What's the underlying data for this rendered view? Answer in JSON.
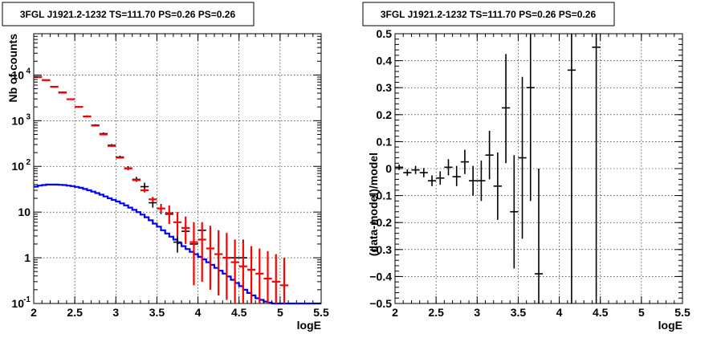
{
  "chart_data": [
    {
      "type": "scatter",
      "title": "3FGL J1921.2-1232 TS=111.70 PS=0.26 PS=0.26",
      "xlabel": "logE",
      "ylabel": "Nb of counts",
      "xlim": [
        2,
        5.5
      ],
      "ylim": [
        0.1,
        80000
      ],
      "yscale": "log",
      "grid": true,
      "x_ticks": [
        "2",
        "2.5",
        "3",
        "3.5",
        "4",
        "4.5",
        "5",
        "5.5"
      ],
      "y_ticks": [
        {
          "value": 0.1,
          "label": "10",
          "sup": "-1"
        },
        {
          "value": 1,
          "label": "1",
          "sup": ""
        },
        {
          "value": 10,
          "label": "10",
          "sup": ""
        },
        {
          "value": 100,
          "label": "10",
          "sup": "2"
        },
        {
          "value": 1000,
          "label": "10",
          "sup": "3"
        },
        {
          "value": 10000,
          "label": "10",
          "sup": "4"
        }
      ],
      "series": [
        {
          "color": "#0000ff",
          "style": "step",
          "bin_edges": [
            2.0,
            2.05,
            2.1,
            2.15,
            2.2,
            2.25,
            2.3,
            2.35,
            2.4,
            2.45,
            2.5,
            2.55,
            2.6,
            2.65,
            2.7,
            2.75,
            2.8,
            2.85,
            2.9,
            2.95,
            3.0,
            3.05,
            3.1,
            3.15,
            3.2,
            3.25,
            3.3,
            3.35,
            3.4,
            3.45,
            3.5,
            3.55,
            3.6,
            3.65,
            3.7,
            3.75,
            3.8,
            3.85,
            3.9,
            3.95,
            4.0,
            4.05,
            4.1,
            4.15,
            4.2,
            4.25,
            4.3,
            4.35,
            4.4,
            4.45,
            4.5,
            4.55,
            4.6,
            4.65,
            4.7,
            4.75,
            4.8,
            4.85,
            4.9,
            4.95,
            5.0,
            5.05,
            5.1,
            5.15,
            5.2,
            5.25,
            5.3,
            5.35,
            5.4,
            5.45,
            5.5
          ],
          "values": [
            36,
            38,
            39,
            40,
            40,
            40,
            39.5,
            39,
            38,
            37,
            35.5,
            34,
            32,
            30,
            28,
            26,
            24,
            22,
            20,
            18.5,
            17,
            15.5,
            14,
            12.5,
            11.2,
            10,
            8.8,
            7.7,
            6.6,
            5.6,
            4.8,
            4.0,
            3.4,
            2.9,
            2.5,
            2.1,
            1.8,
            1.55,
            1.35,
            1.2,
            1.05,
            0.92,
            0.8,
            0.7,
            0.6,
            0.52,
            0.45,
            0.39,
            0.33,
            0.28,
            0.24,
            0.2,
            0.17,
            0.15,
            0.13,
            0.12,
            0.11,
            0.105,
            0.1,
            0.1,
            0.1,
            0.1,
            0.1,
            0.1,
            0.1,
            0.1,
            0.1,
            0.1,
            0.1,
            0.1
          ]
        },
        {
          "color": "#000000",
          "style": "errorbar",
          "points": [
            {
              "x": 2.05,
              "y": 9200,
              "lo": 9000,
              "hi": 9400
            },
            {
              "x": 2.15,
              "y": 7800,
              "lo": 7600,
              "hi": 8000
            },
            {
              "x": 2.25,
              "y": 5600,
              "lo": 5450,
              "hi": 5750
            },
            {
              "x": 2.35,
              "y": 4200,
              "lo": 4080,
              "hi": 4320
            },
            {
              "x": 2.45,
              "y": 2950,
              "lo": 2850,
              "hi": 3050
            },
            {
              "x": 2.55,
              "y": 2000,
              "lo": 1920,
              "hi": 2080
            },
            {
              "x": 2.65,
              "y": 1250,
              "lo": 1190,
              "hi": 1310
            },
            {
              "x": 2.75,
              "y": 800,
              "lo": 760,
              "hi": 840
            },
            {
              "x": 2.85,
              "y": 520,
              "lo": 490,
              "hi": 550
            },
            {
              "x": 2.95,
              "y": 290,
              "lo": 272,
              "hi": 308
            },
            {
              "x": 3.05,
              "y": 160,
              "lo": 148,
              "hi": 172
            },
            {
              "x": 3.15,
              "y": 92,
              "lo": 83,
              "hi": 101
            },
            {
              "x": 3.25,
              "y": 52,
              "lo": 46,
              "hi": 59
            },
            {
              "x": 3.35,
              "y": 36,
              "lo": 29,
              "hi": 44
            },
            {
              "x": 3.45,
              "y": 16,
              "lo": 12.5,
              "hi": 20
            },
            {
              "x": 3.55,
              "y": 12,
              "lo": 9,
              "hi": 15
            },
            {
              "x": 3.65,
              "y": 9,
              "lo": 6.5,
              "hi": 12
            },
            {
              "x": 3.75,
              "y": 2.2,
              "lo": 1.3,
              "hi": 3.6
            },
            {
              "x": 3.85,
              "y": 3.8,
              "lo": 2.4,
              "hi": 5.5
            },
            {
              "x": 3.95,
              "y": 2.0,
              "lo": 1.2,
              "hi": 3.2
            },
            {
              "x": 4.05,
              "y": 4.0,
              "lo": 2.5,
              "hi": 6.0
            },
            {
              "x": 4.45,
              "y": 1.0,
              "lo": 0.35,
              "hi": 2.5
            },
            {
              "x": 4.55,
              "y": 1.0,
              "lo": 0.35,
              "hi": 2.5
            }
          ]
        },
        {
          "color": "#ff0000",
          "style": "errorbar",
          "points": [
            {
              "x": 2.05,
              "y": 9000,
              "lo": 8900,
              "hi": 9100
            },
            {
              "x": 2.15,
              "y": 7700,
              "lo": 7600,
              "hi": 7800
            },
            {
              "x": 2.25,
              "y": 5500,
              "lo": 5420,
              "hi": 5580
            },
            {
              "x": 2.35,
              "y": 4100,
              "lo": 4040,
              "hi": 4160
            },
            {
              "x": 2.45,
              "y": 2950,
              "lo": 2900,
              "hi": 3000
            },
            {
              "x": 2.55,
              "y": 2000,
              "lo": 1960,
              "hi": 2040
            },
            {
              "x": 2.65,
              "y": 1230,
              "lo": 1200,
              "hi": 1260
            },
            {
              "x": 2.75,
              "y": 780,
              "lo": 760,
              "hi": 800
            },
            {
              "x": 2.85,
              "y": 500,
              "lo": 485,
              "hi": 515
            },
            {
              "x": 2.95,
              "y": 280,
              "lo": 270,
              "hi": 290
            },
            {
              "x": 3.05,
              "y": 155,
              "lo": 148,
              "hi": 162
            },
            {
              "x": 3.15,
              "y": 90,
              "lo": 85,
              "hi": 95
            },
            {
              "x": 3.25,
              "y": 50,
              "lo": 46.5,
              "hi": 53.5
            },
            {
              "x": 3.35,
              "y": 30,
              "lo": 27,
              "hi": 33
            },
            {
              "x": 3.45,
              "y": 19,
              "lo": 16.5,
              "hi": 21.5
            },
            {
              "x": 3.55,
              "y": 12,
              "lo": 10,
              "hi": 14
            },
            {
              "x": 3.65,
              "y": 9.5,
              "lo": 5.5,
              "hi": 14
            },
            {
              "x": 3.75,
              "y": 6.0,
              "lo": 3,
              "hi": 10
            },
            {
              "x": 3.85,
              "y": 4.5,
              "lo": 2,
              "hi": 8
            },
            {
              "x": 3.95,
              "y": 2.2,
              "lo": 0.25,
              "hi": 6
            },
            {
              "x": 4.05,
              "y": 2.5,
              "lo": 0.3,
              "hi": 6
            },
            {
              "x": 4.15,
              "y": 1.6,
              "lo": 0.2,
              "hi": 5
            },
            {
              "x": 4.25,
              "y": 1.2,
              "lo": 0.15,
              "hi": 4
            },
            {
              "x": 4.35,
              "y": 1.0,
              "lo": 0.12,
              "hi": 3.5
            },
            {
              "x": 4.45,
              "y": 0.8,
              "lo": 0.1,
              "hi": 2.5
            },
            {
              "x": 4.55,
              "y": 0.65,
              "lo": 0.1,
              "hi": 2.2
            },
            {
              "x": 4.65,
              "y": 0.55,
              "lo": 0.1,
              "hi": 1.8
            },
            {
              "x": 4.75,
              "y": 0.45,
              "lo": 0.1,
              "hi": 1.6
            },
            {
              "x": 4.85,
              "y": 0.35,
              "lo": 0.1,
              "hi": 1.4
            },
            {
              "x": 4.95,
              "y": 0.3,
              "lo": 0.1,
              "hi": 1.2
            },
            {
              "x": 5.05,
              "y": 0.25,
              "lo": 0.1,
              "hi": 1.0
            }
          ]
        }
      ]
    },
    {
      "type": "scatter",
      "title": "3FGL J1921.2-1232 TS=111.70 PS=0.26 PS=0.26",
      "xlabel": "logE",
      "ylabel": "(data-model)/model",
      "xlim": [
        2,
        5.5
      ],
      "ylim": [
        -0.5,
        0.5
      ],
      "grid": true,
      "x_ticks": [
        "2",
        "2.5",
        "3",
        "3.5",
        "4",
        "4.5",
        "5",
        "5.5"
      ],
      "y_ticks": [
        "−0.5",
        "−0.4",
        "−0.3",
        "−0.2",
        "−0.1",
        "0",
        "0.1",
        "0.2",
        "0.3",
        "0.4",
        "0.5"
      ],
      "series": [
        {
          "color": "#000000",
          "style": "errorbar",
          "points": [
            {
              "x": 2.05,
              "y": 0.005,
              "lo": -0.005,
              "hi": 0.015
            },
            {
              "x": 2.15,
              "y": -0.015,
              "lo": -0.027,
              "hi": -0.003
            },
            {
              "x": 2.25,
              "y": -0.005,
              "lo": -0.02,
              "hi": 0.01
            },
            {
              "x": 2.35,
              "y": -0.015,
              "lo": -0.032,
              "hi": 0.002
            },
            {
              "x": 2.45,
              "y": -0.045,
              "lo": -0.065,
              "hi": -0.025
            },
            {
              "x": 2.55,
              "y": -0.035,
              "lo": -0.06,
              "hi": -0.01
            },
            {
              "x": 2.65,
              "y": 0.005,
              "lo": -0.025,
              "hi": 0.035
            },
            {
              "x": 2.75,
              "y": -0.03,
              "lo": -0.065,
              "hi": 0.01
            },
            {
              "x": 2.85,
              "y": 0.025,
              "lo": -0.02,
              "hi": 0.07
            },
            {
              "x": 2.95,
              "y": -0.045,
              "lo": -0.1,
              "hi": 0.01
            },
            {
              "x": 3.05,
              "y": -0.045,
              "lo": -0.12,
              "hi": 0.03
            },
            {
              "x": 3.15,
              "y": 0.05,
              "lo": -0.04,
              "hi": 0.14
            },
            {
              "x": 3.25,
              "y": -0.065,
              "lo": -0.19,
              "hi": 0.06
            },
            {
              "x": 3.35,
              "y": 0.225,
              "lo": 0.02,
              "hi": 0.425
            },
            {
              "x": 3.45,
              "y": -0.16,
              "lo": -0.37,
              "hi": 0.05
            },
            {
              "x": 3.55,
              "y": 0.04,
              "lo": -0.26,
              "hi": 0.34
            },
            {
              "x": 3.65,
              "y": 0.3,
              "lo": -0.12,
              "hi": 0.5
            },
            {
              "x": 3.75,
              "y": -0.39,
              "lo": -0.5,
              "hi": 0.0
            },
            {
              "x": 4.15,
              "y": 0.365,
              "lo": -0.5,
              "hi": 0.5
            },
            {
              "x": 4.45,
              "y": 0.45,
              "lo": -0.5,
              "hi": 0.5
            }
          ]
        }
      ]
    }
  ]
}
